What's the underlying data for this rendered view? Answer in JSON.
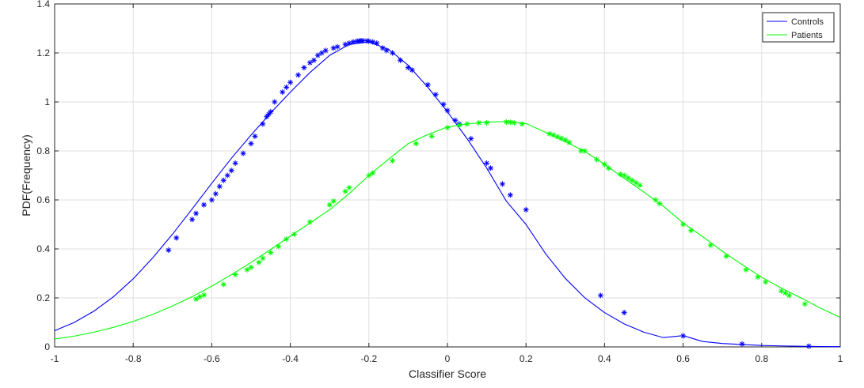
{
  "chart_data": {
    "type": "line",
    "title": "",
    "xlabel": "Classifier Score",
    "ylabel": "PDF(Frequency)",
    "xlim": [
      -1,
      1
    ],
    "ylim": [
      0,
      1.4
    ],
    "grid": true,
    "legend_position": "top-right",
    "xticks": [
      -1,
      -0.8,
      -0.6,
      -0.4,
      -0.2,
      0,
      0.2,
      0.4,
      0.6,
      0.8,
      1
    ],
    "xtick_labels": [
      "-1",
      "-0.8",
      "-0.6",
      "-0.4",
      "-0.2",
      "0",
      "0.2",
      "0.4",
      "0.6",
      "0.8",
      "1"
    ],
    "yticks": [
      0,
      0.2,
      0.4,
      0.6,
      0.8,
      1,
      1.2,
      1.4
    ],
    "ytick_labels": [
      "0",
      "0.2",
      "0.4",
      "0.6",
      "0.8",
      "1",
      "1.2",
      "1.4"
    ],
    "series": [
      {
        "name": "Controls",
        "color": "#0000ff",
        "marker": "asterisk",
        "x": [
          -1,
          -0.95,
          -0.9,
          -0.85,
          -0.8,
          -0.75,
          -0.7,
          -0.65,
          -0.6,
          -0.55,
          -0.5,
          -0.45,
          -0.4,
          -0.35,
          -0.3,
          -0.25,
          -0.2,
          -0.15,
          -0.1,
          -0.05,
          0,
          0.05,
          0.1,
          0.15,
          0.2,
          0.25,
          0.3,
          0.35,
          0.4,
          0.45,
          0.5,
          0.55,
          0.6,
          0.65,
          0.7,
          0.75,
          0.8,
          0.85,
          0.9,
          0.95,
          1
        ],
        "y": [
          0.066,
          0.1,
          0.146,
          0.205,
          0.278,
          0.364,
          0.46,
          0.563,
          0.668,
          0.77,
          0.865,
          0.955,
          1.04,
          1.12,
          1.19,
          1.235,
          1.245,
          1.215,
          1.15,
          1.06,
          0.96,
          0.85,
          0.73,
          0.595,
          0.5,
          0.38,
          0.28,
          0.2,
          0.14,
          0.094,
          0.06,
          0.038,
          0.046,
          0.022,
          0.014,
          0.01,
          0.006,
          0.004,
          0.0025,
          0.0015,
          0.001
        ],
        "points_x": [
          -0.71,
          -0.69,
          -0.65,
          -0.64,
          -0.62,
          -0.6,
          -0.59,
          -0.58,
          -0.57,
          -0.56,
          -0.55,
          -0.54,
          -0.52,
          -0.5,
          -0.49,
          -0.47,
          -0.46,
          -0.455,
          -0.45,
          -0.44,
          -0.42,
          -0.41,
          -0.4,
          -0.38,
          -0.365,
          -0.35,
          -0.34,
          -0.33,
          -0.32,
          -0.31,
          -0.29,
          -0.28,
          -0.26,
          -0.25,
          -0.24,
          -0.23,
          -0.225,
          -0.22,
          -0.215,
          -0.205,
          -0.2,
          -0.19,
          -0.18,
          -0.165,
          -0.155,
          -0.14,
          -0.12,
          -0.1,
          -0.09,
          -0.05,
          -0.03,
          -0.01,
          0.0,
          0.02,
          0.03,
          0.06,
          0.1,
          0.11,
          0.14,
          0.16,
          0.2,
          0.39,
          0.45,
          0.6,
          0.75,
          0.92
        ],
        "points_y": [
          0.395,
          0.445,
          0.52,
          0.545,
          0.58,
          0.6,
          0.625,
          0.655,
          0.68,
          0.7,
          0.72,
          0.75,
          0.79,
          0.83,
          0.86,
          0.91,
          0.94,
          0.95,
          0.96,
          1.0,
          1.04,
          1.06,
          1.08,
          1.11,
          1.14,
          1.16,
          1.17,
          1.19,
          1.2,
          1.21,
          1.22,
          1.225,
          1.235,
          1.24,
          1.245,
          1.248,
          1.249,
          1.25,
          1.25,
          1.249,
          1.248,
          1.245,
          1.24,
          1.22,
          1.21,
          1.2,
          1.17,
          1.14,
          1.13,
          1.07,
          1.03,
          0.99,
          0.965,
          0.925,
          0.91,
          0.85,
          0.75,
          0.73,
          0.665,
          0.62,
          0.56,
          0.21,
          0.14,
          0.045,
          0.012,
          0.003
        ]
      },
      {
        "name": "Patients",
        "color": "#00ff00",
        "marker": "asterisk",
        "x": [
          -1,
          -0.95,
          -0.9,
          -0.85,
          -0.8,
          -0.75,
          -0.7,
          -0.65,
          -0.6,
          -0.55,
          -0.5,
          -0.45,
          -0.4,
          -0.35,
          -0.3,
          -0.25,
          -0.2,
          -0.15,
          -0.1,
          -0.05,
          0,
          0.05,
          0.1,
          0.15,
          0.2,
          0.25,
          0.3,
          0.35,
          0.4,
          0.45,
          0.5,
          0.55,
          0.6,
          0.65,
          0.7,
          0.75,
          0.8,
          0.85,
          0.9,
          0.95,
          1
        ],
        "y": [
          0.032,
          0.044,
          0.06,
          0.08,
          0.104,
          0.133,
          0.167,
          0.205,
          0.248,
          0.295,
          0.345,
          0.398,
          0.452,
          0.506,
          0.56,
          0.626,
          0.7,
          0.766,
          0.83,
          0.867,
          0.898,
          0.91,
          0.918,
          0.92,
          0.912,
          0.876,
          0.838,
          0.798,
          0.745,
          0.688,
          0.632,
          0.574,
          0.506,
          0.45,
          0.39,
          0.336,
          0.284,
          0.24,
          0.2,
          0.158,
          0.12
        ],
        "points_x": [
          -0.64,
          -0.63,
          -0.62,
          -0.57,
          -0.54,
          -0.51,
          -0.5,
          -0.48,
          -0.47,
          -0.45,
          -0.43,
          -0.41,
          -0.39,
          -0.35,
          -0.3,
          -0.29,
          -0.26,
          -0.25,
          -0.2,
          -0.19,
          -0.14,
          -0.08,
          -0.04,
          0.0,
          0.03,
          0.05,
          0.08,
          0.1,
          0.15,
          0.16,
          0.17,
          0.19,
          0.26,
          0.27,
          0.28,
          0.29,
          0.3,
          0.31,
          0.34,
          0.35,
          0.38,
          0.4,
          0.41,
          0.44,
          0.45,
          0.46,
          0.47,
          0.48,
          0.49,
          0.53,
          0.54,
          0.6,
          0.62,
          0.67,
          0.71,
          0.76,
          0.79,
          0.81,
          0.85,
          0.86,
          0.87,
          0.91
        ],
        "points_y": [
          0.195,
          0.205,
          0.212,
          0.255,
          0.295,
          0.315,
          0.325,
          0.345,
          0.362,
          0.385,
          0.41,
          0.44,
          0.46,
          0.51,
          0.58,
          0.595,
          0.635,
          0.65,
          0.7,
          0.71,
          0.76,
          0.83,
          0.86,
          0.895,
          0.905,
          0.91,
          0.915,
          0.915,
          0.918,
          0.917,
          0.915,
          0.91,
          0.87,
          0.865,
          0.858,
          0.852,
          0.845,
          0.835,
          0.8,
          0.8,
          0.765,
          0.745,
          0.73,
          0.705,
          0.7,
          0.69,
          0.68,
          0.67,
          0.66,
          0.6,
          0.585,
          0.5,
          0.475,
          0.415,
          0.37,
          0.315,
          0.285,
          0.265,
          0.228,
          0.22,
          0.21,
          0.175
        ]
      }
    ]
  }
}
